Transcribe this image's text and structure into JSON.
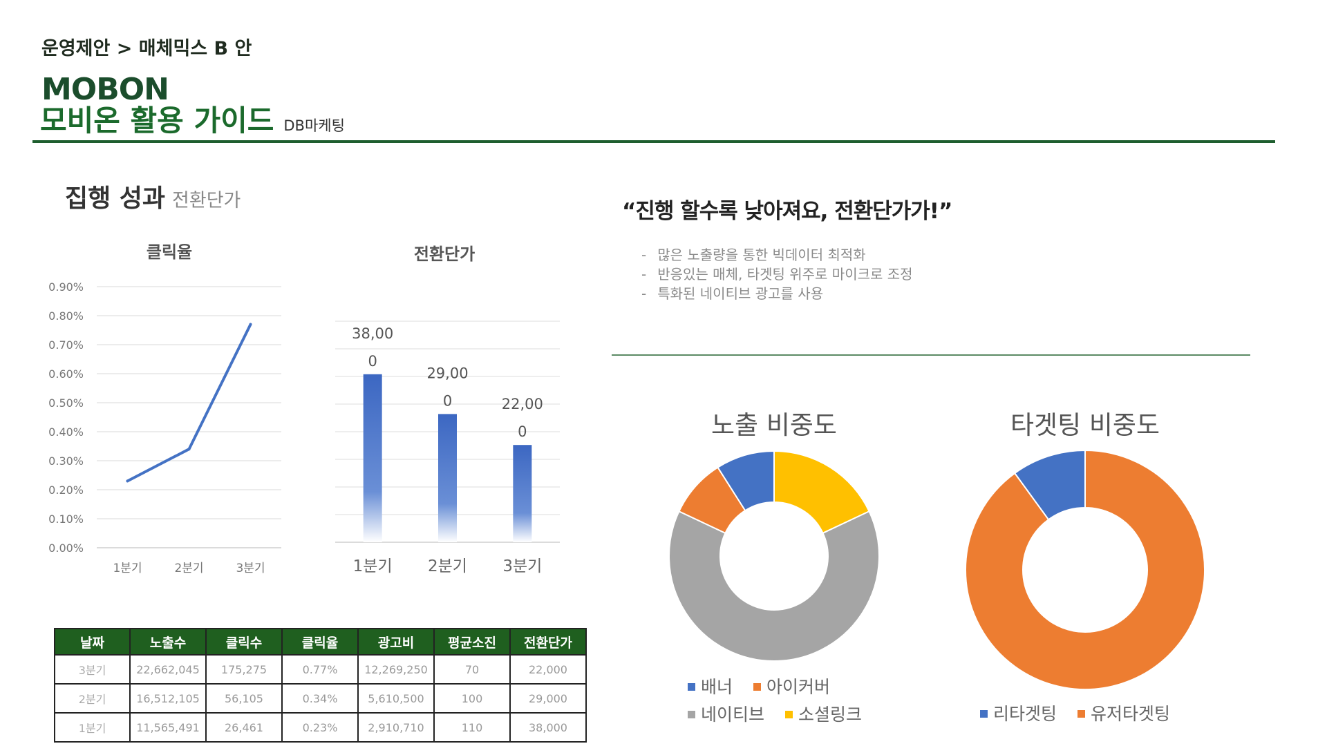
{
  "header": {
    "breadcrumb": "운영제안 > 매체믹스 B 안",
    "brand": "MOBON",
    "title": "모비온 활용 가이드",
    "subtitle": "DB마케팅"
  },
  "section": {
    "title": "집행 성과",
    "subtitle": "전환단가"
  },
  "headline": "“진행 할수록 낮아져요, 전환단가가!”",
  "bullets": [
    "많은 노출량을 통한 빅데이터 최적화",
    "반응있는 매체, 타겟팅 위주로 마이크로 조정",
    "특화된 네이티브 광고를 사용"
  ],
  "colors": {
    "brand_green": "#1f5f1f",
    "series_blue": "#4472c4",
    "orange": "#ed7d31",
    "gray": "#a5a5a5",
    "yellow": "#ffc000"
  },
  "chart_data": [
    {
      "type": "line",
      "title": "클릭율",
      "categories": [
        "1분기",
        "2분기",
        "3분기"
      ],
      "values": [
        0.23,
        0.34,
        0.77
      ],
      "y_ticks": [
        "0.00%",
        "0.10%",
        "0.20%",
        "0.30%",
        "0.40%",
        "0.50%",
        "0.60%",
        "0.70%",
        "0.80%",
        "0.90%"
      ],
      "ylim": [
        0,
        0.9
      ],
      "grid": true
    },
    {
      "type": "bar",
      "title": "전환단가",
      "categories": [
        "1분기",
        "2분기",
        "3분기"
      ],
      "values": [
        38000,
        29000,
        22000
      ],
      "data_labels": [
        [
          "38,00",
          "0"
        ],
        [
          "29,00",
          "0"
        ],
        [
          "22,00",
          "0"
        ]
      ],
      "ylim": [
        0,
        50000
      ],
      "grid": true
    },
    {
      "type": "pie",
      "title": "노출 비중도",
      "series": [
        {
          "name": "배너",
          "value": 9,
          "color": "#4472c4"
        },
        {
          "name": "아이커버",
          "value": 9,
          "color": "#ed7d31"
        },
        {
          "name": "네이티브",
          "value": 64,
          "color": "#a5a5a5"
        },
        {
          "name": "소셜링크",
          "value": 18,
          "color": "#ffc000"
        }
      ]
    },
    {
      "type": "pie",
      "title": "타겟팅 비중도",
      "series": [
        {
          "name": "리타겟팅",
          "value": 10,
          "color": "#4472c4"
        },
        {
          "name": "유저타겟팅",
          "value": 90,
          "color": "#ed7d31"
        }
      ]
    },
    {
      "type": "table",
      "columns": [
        "날짜",
        "노출수",
        "클릭수",
        "클릭율",
        "광고비",
        "평균소진",
        "전환단가"
      ],
      "rows": [
        [
          "3분기",
          "22,662,045",
          "175,275",
          "0.77%",
          "12,269,250",
          "70",
          "22,000"
        ],
        [
          "2분기",
          "16,512,105",
          "56,105",
          "0.34%",
          "5,610,500",
          "100",
          "29,000"
        ],
        [
          "1분기",
          "11,565,491",
          "26,461",
          "0.23%",
          "2,910,710",
          "110",
          "38,000"
        ]
      ]
    }
  ]
}
